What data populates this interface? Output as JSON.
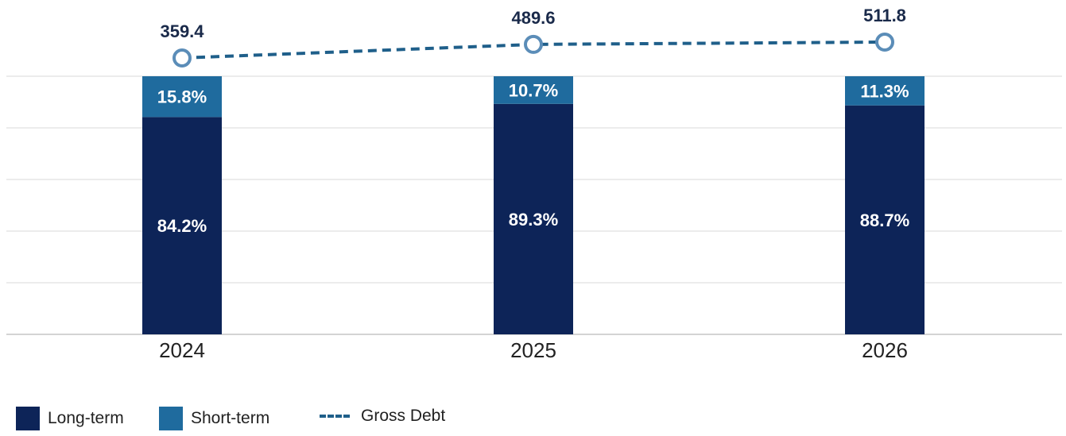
{
  "chart_data": {
    "type": "bar",
    "stacked": true,
    "categories": [
      "2024",
      "2025",
      "2026"
    ],
    "series": [
      {
        "name": "Long-term",
        "values": [
          84.2,
          89.3,
          88.7
        ],
        "labels": [
          "84.2%",
          "89.3%",
          "88.7%"
        ],
        "color": "#0d2458"
      },
      {
        "name": "Short-term",
        "values": [
          15.8,
          10.7,
          11.3
        ],
        "labels": [
          "15.8%",
          "10.7%",
          "11.3%"
        ],
        "color": "#1f6b9e"
      }
    ],
    "line": {
      "name": "Gross Debt",
      "type": "line",
      "style": "dashed",
      "values": [
        359.4,
        489.6,
        511.8
      ],
      "labels": [
        "359.4",
        "489.6",
        "511.8"
      ],
      "color": "#1f5f8a"
    },
    "title": "",
    "xlabel": "",
    "ylabel": "",
    "grid": true,
    "legend_position": "bottom-left"
  },
  "legend": {
    "long_term": "Long-term",
    "short_term": "Short-term",
    "gross_debt": "Gross Debt"
  }
}
